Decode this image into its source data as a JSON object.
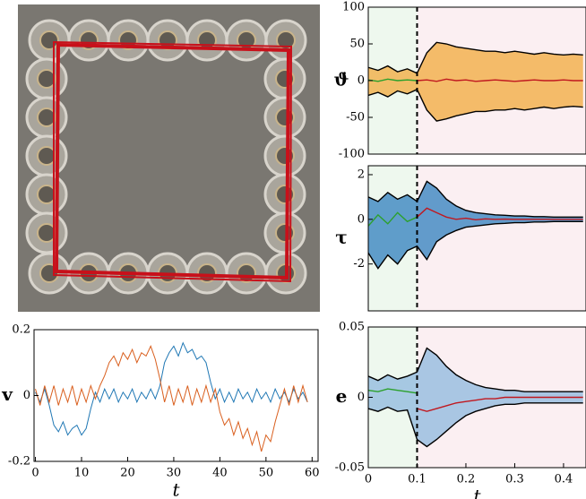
{
  "chart_data": [
    {
      "type": "line",
      "ylabel": "v",
      "xlabel": "t",
      "x": [
        0,
        1,
        2,
        3,
        4,
        5,
        6,
        7,
        8,
        9,
        10,
        11,
        12,
        13,
        14,
        15,
        16,
        17,
        18,
        19,
        20,
        21,
        22,
        23,
        24,
        25,
        26,
        27,
        28,
        29,
        30,
        31,
        32,
        33,
        34,
        35,
        36,
        37,
        38,
        39,
        40,
        41,
        42,
        43,
        44,
        45,
        46,
        47,
        48,
        49,
        50,
        51,
        52,
        53,
        54,
        55,
        56,
        57,
        58,
        59
      ],
      "series": [
        {
          "color": "#1f77b4",
          "values": [
            0.01,
            -0.02,
            0.02,
            -0.03,
            -0.09,
            -0.11,
            -0.08,
            -0.12,
            -0.1,
            -0.09,
            -0.12,
            -0.1,
            -0.04,
            0.01,
            -0.02,
            0.02,
            -0.01,
            0.02,
            -0.02,
            0.01,
            -0.01,
            0.02,
            -0.02,
            0.01,
            -0.01,
            0.02,
            -0.01,
            0.03,
            0.1,
            0.13,
            0.15,
            0.12,
            0.16,
            0.13,
            0.14,
            0.11,
            0.12,
            0.1,
            0.04,
            -0.01,
            0.02,
            -0.02,
            0.01,
            -0.02,
            0.02,
            -0.01,
            0.01,
            -0.02,
            0.02,
            -0.01,
            0.01,
            -0.02,
            0.02,
            -0.01,
            0.01,
            -0.02,
            0.02,
            -0.01,
            0.01,
            -0.02
          ]
        },
        {
          "color": "#d95f1e",
          "values": [
            0.02,
            -0.03,
            0.03,
            -0.02,
            0.03,
            -0.03,
            0.02,
            -0.02,
            0.03,
            -0.03,
            0.02,
            -0.02,
            0.03,
            -0.01,
            0.03,
            0.06,
            0.1,
            0.12,
            0.09,
            0.13,
            0.11,
            0.14,
            0.1,
            0.13,
            0.12,
            0.15,
            0.11,
            0.05,
            -0.02,
            0.03,
            -0.03,
            0.02,
            -0.02,
            0.03,
            -0.03,
            0.02,
            -0.02,
            0.03,
            -0.02,
            0.02,
            -0.05,
            -0.09,
            -0.07,
            -0.12,
            -0.08,
            -0.13,
            -0.1,
            -0.15,
            -0.11,
            -0.17,
            -0.12,
            -0.14,
            -0.08,
            -0.03,
            0.02,
            -0.03,
            0.03,
            -0.02,
            0.03,
            -0.02
          ]
        }
      ],
      "xlim": [
        -0.3,
        61.3
      ],
      "xticks": [
        0,
        10,
        20,
        30,
        40,
        50,
        60
      ],
      "ylim": [
        -0.2,
        0.2
      ],
      "yticks": [
        -0.2,
        0,
        0.2
      ]
    },
    {
      "type": "line",
      "ylabel": "ϑ̇",
      "x": [
        0,
        0.02,
        0.04,
        0.06,
        0.08,
        0.1,
        0.12,
        0.14,
        0.16,
        0.18,
        0.2,
        0.22,
        0.24,
        0.26,
        0.28,
        0.3,
        0.32,
        0.34,
        0.36,
        0.38,
        0.4,
        0.42,
        0.44
      ],
      "band_color": "#f2a93b",
      "vline": 0.1,
      "shade_colors": [
        "#eef8ee",
        "#fbeff2"
      ],
      "series": [
        {
          "color": "#000000",
          "values": [
            18,
            14,
            20,
            12,
            16,
            10,
            38,
            52,
            50,
            46,
            44,
            42,
            40,
            40,
            38,
            40,
            38,
            36,
            38,
            36,
            35,
            36,
            35
          ]
        },
        {
          "color": "#000000",
          "values": [
            -20,
            -16,
            -22,
            -14,
            -18,
            -12,
            -40,
            -55,
            -52,
            -48,
            -45,
            -42,
            -42,
            -40,
            -40,
            -38,
            -40,
            -38,
            -36,
            -38,
            -36,
            -35,
            -36
          ]
        },
        {
          "color": "#2ca02c",
          "values": [
            1,
            -1,
            2,
            0,
            1,
            0,
            null,
            null,
            null,
            null,
            null,
            null,
            null,
            null,
            null,
            null,
            null,
            null,
            null,
            null,
            null,
            null,
            null
          ]
        },
        {
          "color": "#c0181f",
          "values": [
            null,
            null,
            null,
            null,
            null,
            0,
            1,
            -1,
            2,
            0,
            1,
            -1,
            0,
            1,
            0,
            -1,
            0,
            1,
            0,
            0,
            1,
            0,
            0
          ]
        }
      ],
      "xlim": [
        0,
        0.446
      ],
      "ylim": [
        -100,
        100
      ],
      "yticks": [
        -100,
        -50,
        0,
        50,
        100
      ]
    },
    {
      "type": "line",
      "ylabel": "τ",
      "x": [
        0,
        0.02,
        0.04,
        0.06,
        0.08,
        0.1,
        0.12,
        0.14,
        0.16,
        0.18,
        0.2,
        0.22,
        0.24,
        0.26,
        0.28,
        0.3,
        0.32,
        0.34,
        0.36,
        0.38,
        0.4,
        0.42,
        0.44
      ],
      "band_color": "#2f7fbd",
      "vline": 0.1,
      "shade_colors": [
        "#eef8ee",
        "#fbeff2"
      ],
      "series": [
        {
          "color": "#000000",
          "values": [
            1.0,
            0.8,
            1.2,
            0.9,
            1.1,
            0.8,
            1.7,
            1.4,
            0.9,
            0.6,
            0.4,
            0.3,
            0.25,
            0.2,
            0.18,
            0.15,
            0.15,
            0.12,
            0.12,
            0.1,
            0.1,
            0.1,
            0.1
          ]
        },
        {
          "color": "#000000",
          "values": [
            -1.5,
            -2.2,
            -1.6,
            -2.0,
            -1.4,
            -1.2,
            -1.8,
            -1.0,
            -0.7,
            -0.5,
            -0.35,
            -0.3,
            -0.25,
            -0.2,
            -0.18,
            -0.15,
            -0.15,
            -0.12,
            -0.12,
            -0.1,
            -0.1,
            -0.1,
            -0.1
          ]
        },
        {
          "color": "#2ca02c",
          "values": [
            -0.3,
            0.2,
            -0.2,
            0.3,
            -0.1,
            0.1,
            null,
            null,
            null,
            null,
            null,
            null,
            null,
            null,
            null,
            null,
            null,
            null,
            null,
            null,
            null,
            null,
            null
          ]
        },
        {
          "color": "#c0181f",
          "values": [
            null,
            null,
            null,
            null,
            null,
            0.1,
            0.5,
            0.3,
            0.1,
            0,
            0.05,
            -0.02,
            0.02,
            0,
            0.01,
            0,
            0,
            0,
            0,
            0,
            0,
            0,
            0
          ]
        }
      ],
      "xlim": [
        0,
        0.446
      ],
      "ylim": [
        -4.1,
        2.4
      ],
      "yticks": [
        -2,
        0,
        2
      ]
    },
    {
      "type": "line",
      "ylabel": "e",
      "xlabel": "t",
      "x": [
        0,
        0.02,
        0.04,
        0.06,
        0.08,
        0.1,
        0.12,
        0.14,
        0.16,
        0.18,
        0.2,
        0.22,
        0.24,
        0.26,
        0.28,
        0.3,
        0.32,
        0.34,
        0.36,
        0.38,
        0.4,
        0.42,
        0.44
      ],
      "band_color": "#8db8de",
      "vline": 0.1,
      "shade_colors": [
        "#eef8ee",
        "#fbeff2"
      ],
      "series": [
        {
          "color": "#000000",
          "values": [
            0.015,
            0.012,
            0.016,
            0.013,
            0.015,
            0.018,
            0.035,
            0.03,
            0.022,
            0.016,
            0.012,
            0.009,
            0.007,
            0.006,
            0.005,
            0.005,
            0.004,
            0.004,
            0.004,
            0.004,
            0.004,
            0.004,
            0.004
          ]
        },
        {
          "color": "#000000",
          "values": [
            -0.008,
            -0.01,
            -0.007,
            -0.01,
            -0.009,
            -0.03,
            -0.035,
            -0.03,
            -0.024,
            -0.018,
            -0.013,
            -0.01,
            -0.008,
            -0.006,
            -0.005,
            -0.005,
            -0.004,
            -0.004,
            -0.004,
            -0.004,
            -0.004,
            -0.004,
            -0.004
          ]
        },
        {
          "color": "#2ca02c",
          "values": [
            0.005,
            0.004,
            0.006,
            0.005,
            0.004,
            0.003,
            null,
            null,
            null,
            null,
            null,
            null,
            null,
            null,
            null,
            null,
            null,
            null,
            null,
            null,
            null,
            null,
            null
          ]
        },
        {
          "color": "#c0181f",
          "values": [
            null,
            null,
            null,
            null,
            null,
            -0.008,
            -0.01,
            -0.008,
            -0.006,
            -0.004,
            -0.003,
            -0.002,
            -0.001,
            -0.001,
            0,
            0,
            0,
            0,
            0,
            0,
            0,
            0,
            0
          ]
        }
      ],
      "xlim": [
        0,
        0.446
      ],
      "xticks": [
        0,
        0.1,
        0.2,
        0.3,
        0.4
      ],
      "ylim": [
        -0.05,
        0.05
      ],
      "yticks": [
        -0.05,
        0,
        0.05
      ]
    }
  ]
}
